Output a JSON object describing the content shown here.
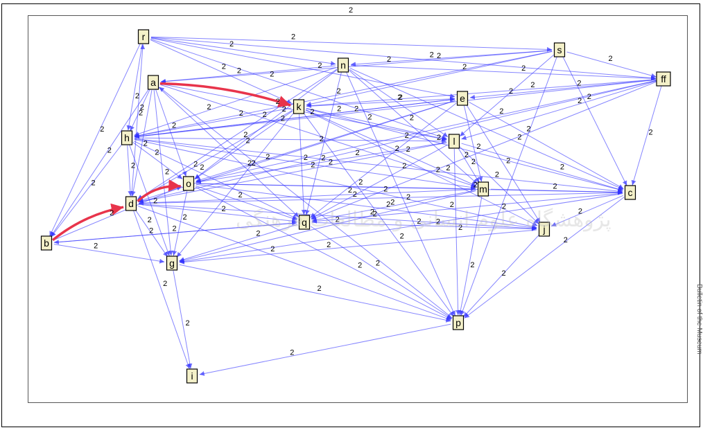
{
  "diagram": {
    "top_label": "2",
    "side_note": "Bulletin of the Museum",
    "watermark": "پژوهشگاه علوم انسانی و مطالعات فرهنگی",
    "nodes": [
      {
        "id": "r",
        "label": "r"
      },
      {
        "id": "s",
        "label": "s"
      },
      {
        "id": "n",
        "label": "n"
      },
      {
        "id": "ff",
        "label": "ff"
      },
      {
        "id": "a",
        "label": "a"
      },
      {
        "id": "k",
        "label": "k"
      },
      {
        "id": "e",
        "label": "e"
      },
      {
        "id": "h",
        "label": "h"
      },
      {
        "id": "l",
        "label": "l"
      },
      {
        "id": "o",
        "label": "o"
      },
      {
        "id": "m",
        "label": "m"
      },
      {
        "id": "d",
        "label": "d"
      },
      {
        "id": "c",
        "label": "c"
      },
      {
        "id": "q",
        "label": "q"
      },
      {
        "id": "j",
        "label": "j"
      },
      {
        "id": "b",
        "label": "b"
      },
      {
        "id": "g",
        "label": "g"
      },
      {
        "id": "p",
        "label": "p"
      },
      {
        "id": "i",
        "label": "i"
      }
    ],
    "highlighted_edges": [
      {
        "from": "a",
        "to": "k"
      },
      {
        "from": "b",
        "to": "d"
      },
      {
        "from": "d",
        "to": "o"
      }
    ],
    "edges": [
      {
        "from": "r",
        "to": "s",
        "w": "2"
      },
      {
        "from": "r",
        "to": "n",
        "w": "2"
      },
      {
        "from": "r",
        "to": "k",
        "w": "2"
      },
      {
        "from": "r",
        "to": "ff",
        "w": "2"
      },
      {
        "from": "r",
        "to": "h",
        "w": "2"
      },
      {
        "from": "r",
        "to": "l",
        "w": "2"
      },
      {
        "from": "r",
        "to": "b",
        "w": "2"
      },
      {
        "from": "r",
        "to": "e",
        "w": "2"
      },
      {
        "from": "s",
        "to": "n",
        "w": "2"
      },
      {
        "from": "s",
        "to": "k",
        "w": "2"
      },
      {
        "from": "s",
        "to": "ff",
        "w": "2"
      },
      {
        "from": "s",
        "to": "h",
        "w": "2"
      },
      {
        "from": "s",
        "to": "p",
        "w": "2"
      },
      {
        "from": "s",
        "to": "c",
        "w": "2"
      },
      {
        "from": "s",
        "to": "a",
        "w": "2"
      },
      {
        "from": "s",
        "to": "l",
        "w": "2"
      },
      {
        "from": "n",
        "to": "a",
        "w": "2"
      },
      {
        "from": "n",
        "to": "h",
        "w": "2"
      },
      {
        "from": "n",
        "to": "o",
        "w": "2"
      },
      {
        "from": "n",
        "to": "l",
        "w": "2"
      },
      {
        "from": "n",
        "to": "ff",
        "w": "2"
      },
      {
        "from": "n",
        "to": "q",
        "w": "2"
      },
      {
        "from": "n",
        "to": "d",
        "w": "2"
      },
      {
        "from": "n",
        "to": "m",
        "w": "2"
      },
      {
        "from": "n",
        "to": "p",
        "w": "2"
      },
      {
        "from": "n",
        "to": "c",
        "w": "2"
      },
      {
        "from": "ff",
        "to": "k",
        "w": "2"
      },
      {
        "from": "ff",
        "to": "e",
        "w": "2"
      },
      {
        "from": "ff",
        "to": "c",
        "w": "2"
      },
      {
        "from": "ff",
        "to": "h",
        "w": "2"
      },
      {
        "from": "ff",
        "to": "o",
        "w": "2"
      },
      {
        "from": "ff",
        "to": "l",
        "w": "2"
      },
      {
        "from": "ff",
        "to": "d",
        "w": "2"
      },
      {
        "from": "ff",
        "to": "q",
        "w": "2"
      },
      {
        "from": "a",
        "to": "h",
        "w": "2"
      },
      {
        "from": "a",
        "to": "l",
        "w": "2"
      },
      {
        "from": "a",
        "to": "o",
        "w": "2"
      },
      {
        "from": "a",
        "to": "d",
        "w": "2"
      },
      {
        "from": "a",
        "to": "q",
        "w": "2"
      },
      {
        "from": "a",
        "to": "m",
        "w": "2"
      },
      {
        "from": "a",
        "to": "b",
        "w": "2"
      },
      {
        "from": "a",
        "to": "g",
        "w": "2"
      },
      {
        "from": "k",
        "to": "e",
        "w": "2"
      },
      {
        "from": "k",
        "to": "h",
        "w": "2"
      },
      {
        "from": "k",
        "to": "l",
        "w": "2"
      },
      {
        "from": "k",
        "to": "o",
        "w": "2"
      },
      {
        "from": "k",
        "to": "m",
        "w": "2"
      },
      {
        "from": "k",
        "to": "d",
        "w": "2"
      },
      {
        "from": "k",
        "to": "c",
        "w": "2"
      },
      {
        "from": "k",
        "to": "q",
        "w": "2"
      },
      {
        "from": "k",
        "to": "j",
        "w": "2"
      },
      {
        "from": "k",
        "to": "p",
        "w": "2"
      },
      {
        "from": "k",
        "to": "g",
        "w": "2"
      },
      {
        "from": "e",
        "to": "h",
        "w": "2"
      },
      {
        "from": "e",
        "to": "o",
        "w": "2"
      },
      {
        "from": "e",
        "to": "d",
        "w": "2"
      },
      {
        "from": "e",
        "to": "c",
        "w": "2"
      },
      {
        "from": "e",
        "to": "q",
        "w": "2"
      },
      {
        "from": "e",
        "to": "j",
        "w": "2"
      },
      {
        "from": "e",
        "to": "m",
        "w": "2"
      },
      {
        "from": "h",
        "to": "l",
        "w": "2"
      },
      {
        "from": "h",
        "to": "o",
        "w": "2"
      },
      {
        "from": "h",
        "to": "d",
        "w": "2"
      },
      {
        "from": "h",
        "to": "m",
        "w": "2"
      },
      {
        "from": "h",
        "to": "c",
        "w": "2"
      },
      {
        "from": "h",
        "to": "q",
        "w": "2"
      },
      {
        "from": "h",
        "to": "b",
        "w": "2"
      },
      {
        "from": "h",
        "to": "g",
        "w": "2"
      },
      {
        "from": "h",
        "to": "j",
        "w": "2"
      },
      {
        "from": "l",
        "to": "o",
        "w": "2"
      },
      {
        "from": "l",
        "to": "d",
        "w": "2"
      },
      {
        "from": "l",
        "to": "m",
        "w": "2"
      },
      {
        "from": "l",
        "to": "c",
        "w": "2"
      },
      {
        "from": "l",
        "to": "q",
        "w": "2"
      },
      {
        "from": "l",
        "to": "j",
        "w": "2"
      },
      {
        "from": "l",
        "to": "p",
        "w": "2"
      },
      {
        "from": "o",
        "to": "m",
        "w": "2"
      },
      {
        "from": "o",
        "to": "c",
        "w": "2"
      },
      {
        "from": "o",
        "to": "q",
        "w": "2"
      },
      {
        "from": "o",
        "to": "g",
        "w": "2"
      },
      {
        "from": "o",
        "to": "j",
        "w": "2"
      },
      {
        "from": "o",
        "to": "p",
        "w": "2"
      },
      {
        "from": "m",
        "to": "d",
        "w": "2"
      },
      {
        "from": "m",
        "to": "c",
        "w": "2"
      },
      {
        "from": "m",
        "to": "q",
        "w": "2"
      },
      {
        "from": "m",
        "to": "p",
        "w": "2"
      },
      {
        "from": "m",
        "to": "g",
        "w": "2"
      },
      {
        "from": "d",
        "to": "c",
        "w": "2"
      },
      {
        "from": "d",
        "to": "q",
        "w": "2"
      },
      {
        "from": "d",
        "to": "j",
        "w": "2"
      },
      {
        "from": "d",
        "to": "g",
        "w": "2"
      },
      {
        "from": "d",
        "to": "p",
        "w": "2"
      },
      {
        "from": "d",
        "to": "i",
        "w": "2"
      },
      {
        "from": "c",
        "to": "q",
        "w": "2"
      },
      {
        "from": "c",
        "to": "j",
        "w": "2"
      },
      {
        "from": "c",
        "to": "p",
        "w": "2"
      },
      {
        "from": "c",
        "to": "g",
        "w": "2"
      },
      {
        "from": "q",
        "to": "j",
        "w": "2"
      },
      {
        "from": "q",
        "to": "b",
        "w": "2"
      },
      {
        "from": "q",
        "to": "g",
        "w": "2"
      },
      {
        "from": "q",
        "to": "p",
        "w": "2"
      },
      {
        "from": "j",
        "to": "p",
        "w": "2"
      },
      {
        "from": "j",
        "to": "g",
        "w": "2"
      },
      {
        "from": "b",
        "to": "g",
        "w": "2"
      },
      {
        "from": "b",
        "to": "o",
        "w": "2"
      },
      {
        "from": "g",
        "to": "p",
        "w": "2"
      },
      {
        "from": "g",
        "to": "i",
        "w": "2"
      },
      {
        "from": "p",
        "to": "i",
        "w": "2"
      },
      {
        "from": "p",
        "to": "a",
        "w": "2"
      },
      {
        "from": "b",
        "to": "q",
        "w": "2"
      },
      {
        "from": "d",
        "to": "r",
        "w": "2"
      },
      {
        "from": "h",
        "to": "e",
        "w": "2"
      }
    ]
  }
}
